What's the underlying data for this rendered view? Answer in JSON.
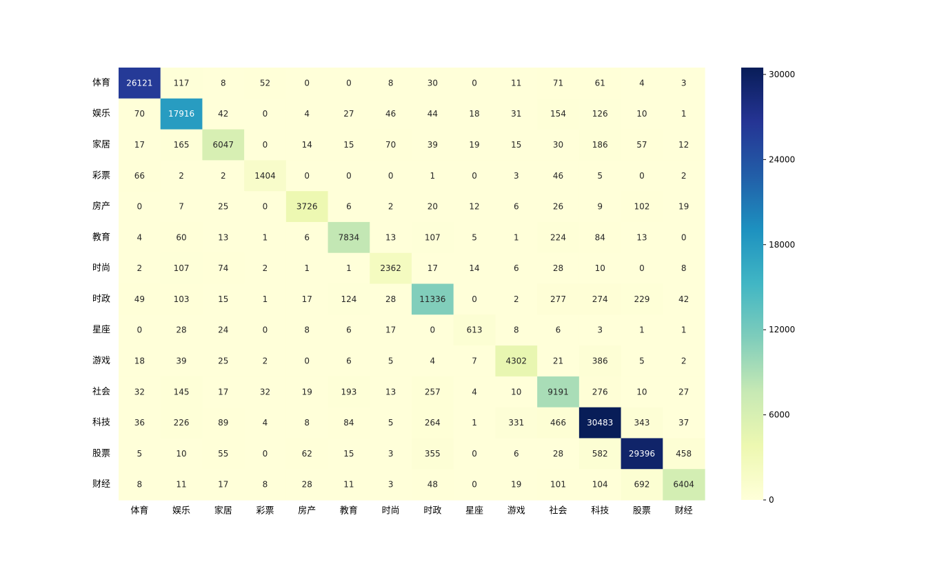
{
  "chart_data": {
    "type": "heatmap",
    "title": "",
    "xlabel": "",
    "ylabel": "",
    "row_labels": [
      "体育",
      "娱乐",
      "家居",
      "彩票",
      "房产",
      "教育",
      "时尚",
      "时政",
      "星座",
      "游戏",
      "社会",
      "科技",
      "股票",
      "财经"
    ],
    "col_labels": [
      "体育",
      "娱乐",
      "家居",
      "彩票",
      "房产",
      "教育",
      "时尚",
      "时政",
      "星座",
      "游戏",
      "社会",
      "科技",
      "股票",
      "财经"
    ],
    "values": [
      [
        26121,
        117,
        8,
        52,
        0,
        0,
        8,
        30,
        0,
        11,
        71,
        61,
        4,
        3
      ],
      [
        70,
        17916,
        42,
        0,
        4,
        27,
        46,
        44,
        18,
        31,
        154,
        126,
        10,
        1
      ],
      [
        17,
        165,
        6047,
        0,
        14,
        15,
        70,
        39,
        19,
        15,
        30,
        186,
        57,
        12
      ],
      [
        66,
        2,
        2,
        1404,
        0,
        0,
        0,
        1,
        0,
        3,
        46,
        5,
        0,
        2
      ],
      [
        0,
        7,
        25,
        0,
        3726,
        6,
        2,
        20,
        12,
        6,
        26,
        9,
        102,
        19
      ],
      [
        4,
        60,
        13,
        1,
        6,
        7834,
        13,
        107,
        5,
        1,
        224,
        84,
        13,
        0
      ],
      [
        2,
        107,
        74,
        2,
        1,
        1,
        2362,
        17,
        14,
        6,
        28,
        10,
        0,
        8
      ],
      [
        49,
        103,
        15,
        1,
        17,
        124,
        28,
        11336,
        0,
        2,
        277,
        274,
        229,
        42
      ],
      [
        0,
        28,
        24,
        0,
        8,
        6,
        17,
        0,
        613,
        8,
        6,
        3,
        1,
        1
      ],
      [
        18,
        39,
        25,
        2,
        0,
        6,
        5,
        4,
        7,
        4302,
        21,
        386,
        5,
        2
      ],
      [
        32,
        145,
        17,
        32,
        19,
        193,
        13,
        257,
        4,
        10,
        9191,
        276,
        10,
        27
      ],
      [
        36,
        226,
        89,
        4,
        8,
        84,
        5,
        264,
        1,
        331,
        466,
        30483,
        343,
        37
      ],
      [
        5,
        10,
        55,
        0,
        62,
        15,
        3,
        355,
        0,
        6,
        28,
        582,
        29396,
        458
      ],
      [
        8,
        11,
        17,
        8,
        28,
        11,
        3,
        48,
        0,
        19,
        101,
        104,
        692,
        6404
      ]
    ],
    "colormap": "YlGnBu",
    "color_stops": [
      "#ffffd9",
      "#edf8b1",
      "#c7e9b4",
      "#7fcdbb",
      "#41b6c4",
      "#1d91c0",
      "#225ea8",
      "#253494",
      "#081d58"
    ],
    "vmin": 0,
    "vmax": 30483,
    "colorbar_ticks": [
      "0",
      "6000",
      "12000",
      "18000",
      "24000",
      "30000"
    ],
    "annot_light_color": "#ffffff",
    "annot_dark_color": "#262626"
  }
}
